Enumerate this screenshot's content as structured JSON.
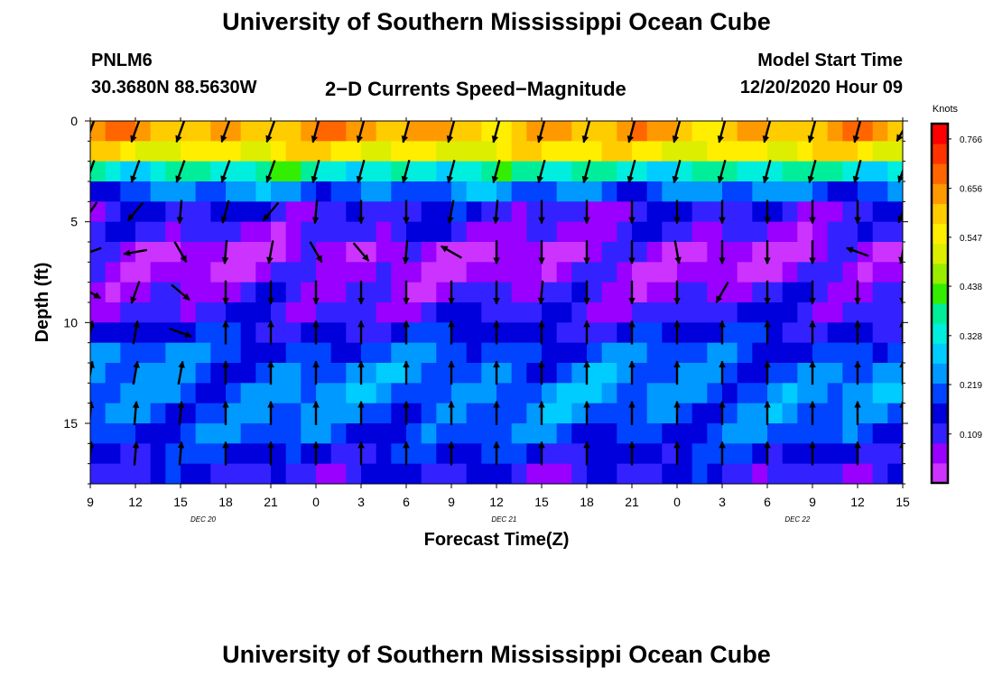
{
  "title": "University of Southern Mississippi Ocean Cube",
  "footer_title": "University of Southern Mississippi Ocean Cube",
  "station": {
    "id": "PNLM6",
    "coordinates": "30.3680N 88.5630W"
  },
  "subtitle": "2−D Currents Speed−Magnitude",
  "model_start": {
    "label": "Model Start Time",
    "value": "12/20/2020 Hour 09"
  },
  "chart_data": {
    "type": "heatmap",
    "title": "2−D Currents Speed−Magnitude",
    "xlabel": "Forecast Time(Z)",
    "ylabel": "Depth (ft)",
    "x_tick_labels": [
      "9",
      "12",
      "15",
      "18",
      "21",
      "0",
      "3",
      "6",
      "9",
      "12",
      "15",
      "18",
      "21",
      "0",
      "3",
      "6",
      "9",
      "12",
      "15"
    ],
    "x_forecast_hours": [
      0,
      54
    ],
    "date_labels": [
      {
        "label": "DEC 20",
        "forecast_hour": 7.5
      },
      {
        "label": "DEC 21",
        "forecast_hour": 27.5
      },
      {
        "label": "DEC 22",
        "forecast_hour": 47
      }
    ],
    "y_ticks": [
      0,
      5,
      10,
      15
    ],
    "ylim": [
      0,
      18
    ],
    "y_inverted": true,
    "colorbar": {
      "unit": "Knots",
      "ticks": [
        "0.766",
        "0.656",
        "0.547",
        "0.438",
        "0.328",
        "0.219",
        "0.109"
      ],
      "range": [
        0,
        0.8
      ],
      "colormap": [
        "#cc33ff",
        "#9900ff",
        "#3322ff",
        "#0000dd",
        "#0044ff",
        "#0099ff",
        "#00ccff",
        "#00eedd",
        "#00ee99",
        "#33ee00",
        "#99ee00",
        "#ddee00",
        "#ffee00",
        "#ffcc00",
        "#ff9900",
        "#ff6600",
        "#ff3300",
        "#ff0000"
      ]
    },
    "depth_levels_ft": [
      0.5,
      1.5,
      2.5,
      3.5,
      4.5,
      5.5,
      6.5,
      7.5,
      8.5,
      9.5,
      10.5,
      11.5,
      12.5,
      13.5,
      14.5,
      15.5,
      16.5,
      17.5
    ],
    "speed_profile_knots": [
      0.62,
      0.55,
      0.35,
      0.22,
      0.12,
      0.1,
      0.05,
      0.06,
      0.09,
      0.11,
      0.15,
      0.2,
      0.22,
      0.23,
      0.22,
      0.2,
      0.16,
      0.12
    ],
    "vector_times": [
      0,
      3,
      6,
      9,
      12,
      15,
      18,
      21,
      24,
      27,
      30,
      33,
      36,
      39,
      42,
      45,
      48,
      51,
      54
    ],
    "vector_depths_ft": [
      0.5,
      2.5,
      4.5,
      6.5,
      8.5,
      10.5,
      12.5,
      14.5,
      16.5
    ],
    "vector_directions_deg": [
      [
        200,
        200,
        200,
        200,
        200,
        195,
        195,
        195,
        195,
        195,
        195,
        195,
        195,
        195,
        195,
        195,
        195,
        195,
        210
      ],
      [
        200,
        200,
        200,
        200,
        200,
        195,
        195,
        195,
        195,
        195,
        195,
        195,
        195,
        195,
        195,
        195,
        195,
        195,
        200
      ],
      [
        215,
        220,
        185,
        195,
        220,
        185,
        180,
        180,
        190,
        185,
        180,
        180,
        180,
        180,
        180,
        180,
        180,
        180,
        200
      ],
      [
        250,
        260,
        150,
        185,
        190,
        150,
        140,
        185,
        300,
        180,
        180,
        180,
        180,
        170,
        180,
        180,
        180,
        290,
        190
      ],
      [
        120,
        200,
        130,
        180,
        180,
        180,
        180,
        180,
        180,
        180,
        185,
        180,
        180,
        180,
        210,
        180,
        180,
        180,
        180
      ],
      [
        10,
        10,
        110,
        0,
        0,
        0,
        0,
        0,
        0,
        0,
        0,
        0,
        0,
        0,
        0,
        0,
        0,
        0,
        0
      ],
      [
        10,
        10,
        10,
        0,
        0,
        0,
        0,
        0,
        0,
        0,
        0,
        0,
        0,
        0,
        0,
        0,
        0,
        0,
        0
      ],
      [
        5,
        5,
        5,
        0,
        0,
        0,
        0,
        0,
        0,
        0,
        0,
        0,
        0,
        0,
        0,
        0,
        0,
        0,
        0
      ],
      [
        5,
        5,
        5,
        0,
        0,
        0,
        0,
        0,
        0,
        0,
        0,
        0,
        0,
        0,
        0,
        0,
        0,
        0,
        0
      ]
    ]
  }
}
